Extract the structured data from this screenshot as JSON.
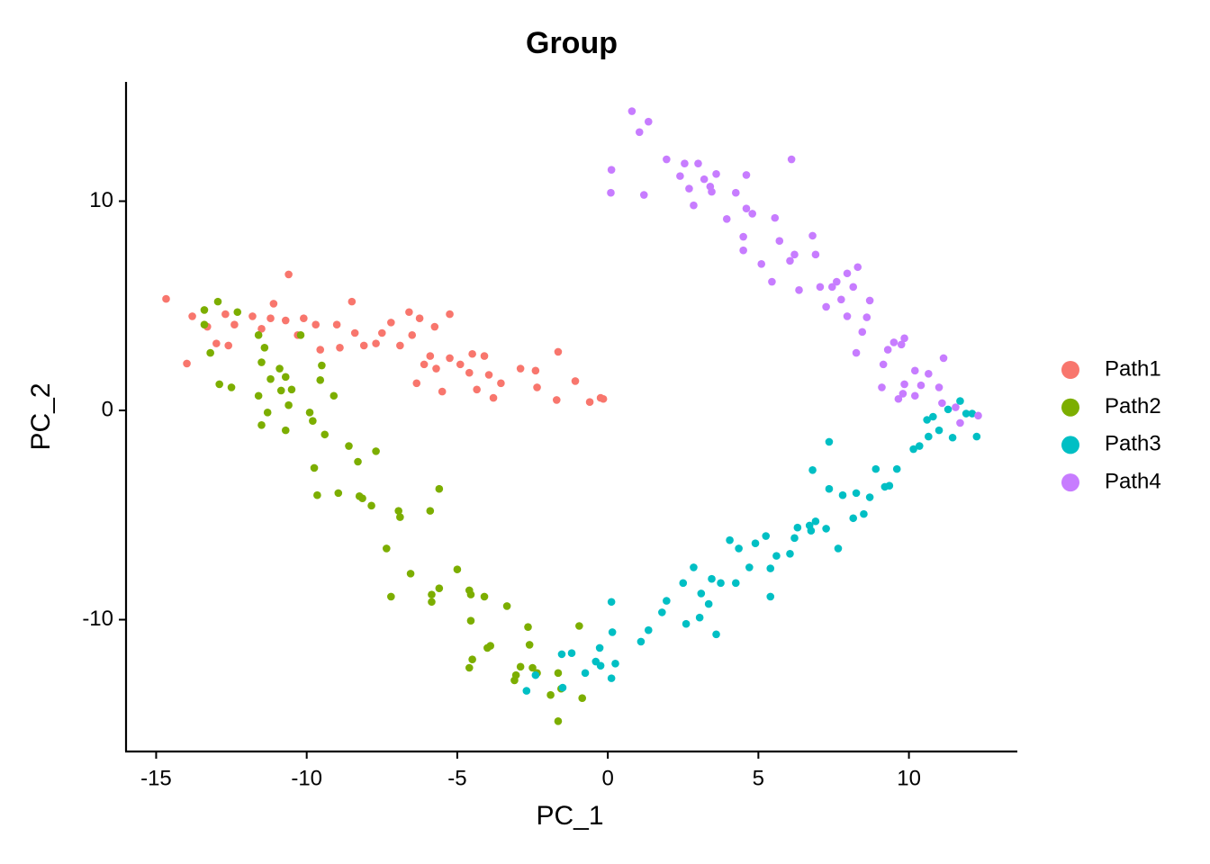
{
  "chart_data": {
    "type": "scatter",
    "title": "Group",
    "x_label": "PC_1",
    "y_label": "PC_2",
    "xlim": [
      -16,
      13.6
    ],
    "ylim": [
      -16.3,
      15.7
    ],
    "xticks": [
      -15,
      -10,
      -5,
      0,
      5,
      10
    ],
    "yticks": [
      -10,
      0,
      10
    ],
    "legend_position": "right",
    "series": [
      {
        "name": "Path1",
        "color": "#F8766D",
        "x": [
          -14.67,
          -13.8,
          -13.98,
          -13.3,
          -13.0,
          -12.7,
          -12.6,
          -12.4,
          -11.8,
          -11.5,
          -11.2,
          -11.1,
          -10.7,
          -10.6,
          -10.3,
          -10.1,
          -9.7,
          -9.55,
          -9.0,
          -8.9,
          -8.5,
          -8.4,
          -8.1,
          -7.7,
          -7.5,
          -7.2,
          -6.9,
          -6.6,
          -6.5,
          -6.25,
          -6.1,
          -5.9,
          -5.75,
          -5.5,
          -5.25,
          -5.25,
          -4.9,
          -4.6,
          -4.5,
          -4.35,
          -4.1,
          -3.95,
          -3.8,
          -3.55,
          -2.9,
          -2.4,
          -2.35,
          -1.7,
          -1.65,
          -1.08,
          -0.6,
          -0.24,
          -0.15,
          -6.35,
          -5.7
        ],
        "values": [
          5.33,
          4.5,
          2.24,
          4.0,
          3.2,
          4.6,
          3.1,
          4.1,
          4.5,
          3.9,
          4.4,
          5.1,
          4.3,
          6.5,
          3.6,
          4.4,
          4.1,
          2.9,
          4.1,
          3.0,
          5.2,
          3.7,
          3.1,
          3.2,
          3.7,
          4.2,
          3.1,
          4.7,
          3.6,
          4.4,
          2.2,
          2.6,
          4.0,
          0.9,
          4.6,
          2.5,
          2.2,
          1.8,
          2.7,
          1.0,
          2.6,
          1.7,
          0.6,
          1.3,
          2.0,
          1.9,
          1.1,
          0.5,
          2.8,
          1.4,
          0.4,
          0.6,
          0.55,
          1.3,
          2.0
        ]
      },
      {
        "name": "Path2",
        "color": "#7CAE00",
        "x": [
          -13.4,
          -12.95,
          -13.4,
          -13.2,
          -12.3,
          -11.6,
          -11.4,
          -11.5,
          -12.9,
          -12.5,
          -11.2,
          -10.9,
          -10.7,
          -10.85,
          -10.5,
          -10.2,
          -11.6,
          -11.5,
          -11.3,
          -10.7,
          -10.6,
          -9.9,
          -9.8,
          -9.5,
          -9.55,
          -9.1,
          -9.4,
          -8.6,
          -8.3,
          -7.7,
          -9.75,
          -9.65,
          -8.95,
          -8.25,
          -8.15,
          -7.85,
          -6.95,
          -6.9,
          -5.9,
          -5.6,
          -7.35,
          -7.2,
          -6.55,
          -5.85,
          -5.6,
          -5.85,
          -5.0,
          -4.6,
          -4.55,
          -4.1,
          -4.55,
          -3.35,
          -4.6,
          -4.5,
          -4.0,
          -3.9,
          -2.65,
          -2.6,
          -2.9,
          -3.05,
          -3.1,
          -2.5,
          -1.65,
          -1.55,
          -1.9,
          -0.85,
          -1.65,
          -0.95,
          -2.35
        ],
        "values": [
          4.8,
          5.2,
          4.1,
          2.75,
          4.7,
          3.6,
          3.0,
          2.3,
          1.25,
          1.1,
          1.5,
          2.0,
          1.6,
          0.95,
          1.0,
          3.6,
          0.7,
          -0.7,
          -0.1,
          -0.95,
          0.25,
          -0.1,
          -0.5,
          2.15,
          1.45,
          0.7,
          -1.15,
          -1.7,
          -2.45,
          -1.95,
          -2.75,
          -4.05,
          -3.95,
          -4.1,
          -4.2,
          -4.55,
          -4.8,
          -5.1,
          -4.8,
          -3.75,
          -6.6,
          -8.9,
          -7.8,
          -8.8,
          -8.5,
          -9.15,
          -7.6,
          -8.6,
          -8.8,
          -8.9,
          -10.05,
          -9.35,
          -12.3,
          -11.9,
          -11.35,
          -11.25,
          -10.35,
          -11.2,
          -12.25,
          -12.65,
          -12.9,
          -12.3,
          -12.55,
          -13.3,
          -13.6,
          -13.75,
          -14.85,
          -10.3,
          -12.55
        ]
      },
      {
        "name": "Path3",
        "color": "#00BFC4",
        "x": [
          -2.7,
          -2.4,
          -1.53,
          -1.5,
          -1.2,
          -0.75,
          -0.4,
          -0.27,
          -0.24,
          0.12,
          0.15,
          0.25,
          0.12,
          1.1,
          1.35,
          1.8,
          1.95,
          2.5,
          2.6,
          2.85,
          3.05,
          3.1,
          3.45,
          3.35,
          3.6,
          3.75,
          4.05,
          4.25,
          4.35,
          4.7,
          4.9,
          5.25,
          5.4,
          5.4,
          5.6,
          6.05,
          6.2,
          6.3,
          6.7,
          6.8,
          6.9,
          6.75,
          7.25,
          7.35,
          7.35,
          7.65,
          7.8,
          8.15,
          8.25,
          8.5,
          8.7,
          8.9,
          9.2,
          9.35,
          9.6,
          10.15,
          10.35,
          10.65,
          10.8,
          11.0,
          11.3,
          11.45,
          11.7,
          11.9,
          12.1,
          12.25,
          10.6
        ],
        "values": [
          -13.4,
          -12.65,
          -11.65,
          -13.25,
          -11.6,
          -12.55,
          -12.0,
          -11.35,
          -12.2,
          -12.8,
          -10.6,
          -12.1,
          -9.15,
          -11.05,
          -10.5,
          -9.65,
          -9.1,
          -8.25,
          -10.2,
          -7.5,
          -9.9,
          -8.75,
          -8.05,
          -9.25,
          -10.7,
          -8.25,
          -6.2,
          -8.25,
          -6.6,
          -7.5,
          -6.35,
          -6.0,
          -7.55,
          -8.9,
          -6.95,
          -6.85,
          -6.1,
          -5.6,
          -5.5,
          -2.85,
          -5.3,
          -5.75,
          -5.65,
          -1.5,
          -3.75,
          -6.6,
          -4.05,
          -5.15,
          -3.95,
          -4.95,
          -4.15,
          -2.8,
          -3.65,
          -3.6,
          -2.8,
          -1.85,
          -1.7,
          -1.25,
          -0.3,
          -0.95,
          0.05,
          -1.3,
          0.45,
          -0.15,
          -0.15,
          -1.25,
          -0.45
        ]
      },
      {
        "name": "Path4",
        "color": "#C77CFF",
        "x": [
          0.8,
          1.05,
          1.35,
          0.12,
          0.1,
          1.2,
          1.95,
          2.4,
          2.55,
          2.7,
          2.85,
          3.0,
          3.2,
          3.45,
          3.6,
          3.4,
          3.95,
          4.6,
          4.25,
          4.6,
          4.8,
          4.5,
          4.5,
          5.1,
          5.45,
          5.55,
          5.7,
          6.1,
          6.05,
          6.2,
          6.35,
          6.8,
          6.9,
          7.05,
          7.25,
          7.45,
          7.6,
          7.75,
          7.95,
          7.95,
          8.15,
          8.25,
          8.3,
          8.45,
          8.6,
          8.7,
          9.15,
          9.3,
          9.5,
          9.75,
          9.85,
          9.1,
          9.65,
          9.85,
          10.2,
          10.2,
          10.4,
          10.65,
          11.15,
          11.0,
          11.1,
          11.55,
          11.7,
          12.3,
          9.8
        ],
        "values": [
          14.3,
          13.3,
          13.8,
          11.5,
          10.4,
          10.3,
          12.0,
          11.2,
          11.8,
          10.6,
          9.8,
          11.8,
          11.05,
          10.45,
          11.3,
          10.7,
          9.15,
          11.25,
          10.4,
          9.65,
          9.4,
          8.3,
          7.65,
          7.0,
          6.15,
          9.2,
          8.1,
          12.0,
          7.15,
          7.45,
          5.75,
          8.35,
          7.45,
          5.9,
          4.95,
          5.9,
          6.15,
          5.3,
          6.55,
          4.5,
          5.9,
          2.75,
          6.85,
          3.75,
          4.45,
          5.25,
          2.2,
          2.9,
          3.25,
          3.15,
          3.45,
          1.1,
          0.55,
          1.25,
          1.9,
          0.7,
          1.2,
          1.75,
          2.5,
          1.1,
          0.35,
          0.15,
          -0.6,
          -0.25,
          0.8
        ]
      }
    ]
  }
}
